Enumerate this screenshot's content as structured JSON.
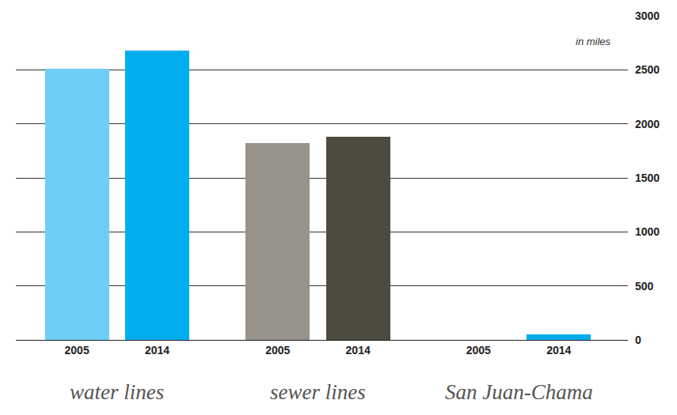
{
  "chart_data": {
    "type": "bar",
    "categories": [
      "2005",
      "2014",
      "2005",
      "2014",
      "2005",
      "2014"
    ],
    "groups": [
      "water lines",
      "sewer lines",
      "San Juan-Chama"
    ],
    "values": [
      2510,
      2680,
      1820,
      1880,
      0,
      50
    ],
    "colors": [
      "#6dcff6",
      "#00aeef",
      "#98938b",
      "#4d4a40",
      "#6dcff6",
      "#00aeef"
    ],
    "ylim": [
      0,
      3000
    ],
    "yticks": [
      0,
      500,
      1000,
      1500,
      2000,
      2500,
      3000
    ],
    "grid": true,
    "annotations": [
      "in miles"
    ]
  }
}
